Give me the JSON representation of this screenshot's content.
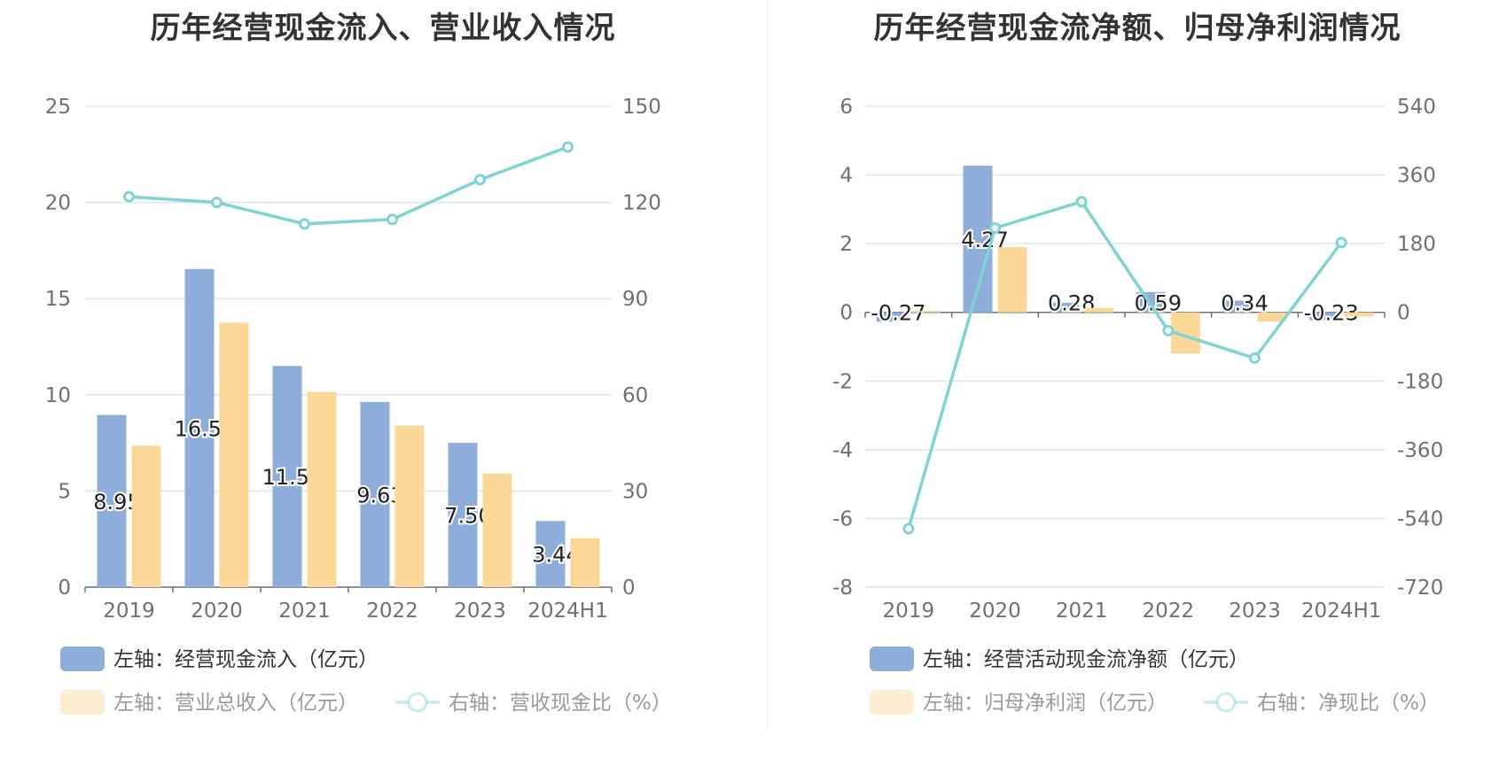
{
  "colors": {
    "bar1": "#8eaddb",
    "bar2": "#fcd898",
    "line": "#7fd3d5",
    "grid": "#dfe4f2",
    "axis": "#6e7079"
  },
  "left": {
    "title": "历年经营现金流入、营业收入情况",
    "legend": [
      {
        "label": "左轴：经营现金流入（亿元）",
        "kind": "bar",
        "color": "#8eaddb",
        "active": true
      },
      {
        "label": "左轴：营业总收入（亿元）",
        "kind": "bar",
        "color": "#fcd898",
        "active": false
      },
      {
        "label": "右轴：营收现金比（%）",
        "kind": "line",
        "color": "#7fd3d5",
        "active": false
      }
    ]
  },
  "right": {
    "title": "历年经营现金流净额、归母净利润情况",
    "legend": [
      {
        "label": "左轴：经营活动现金流净额（亿元）",
        "kind": "bar",
        "color": "#8eaddb",
        "active": true
      },
      {
        "label": "左轴：归母净利润（亿元）",
        "kind": "bar",
        "color": "#fcd898",
        "active": false
      },
      {
        "label": "右轴：净现比（%）",
        "kind": "line",
        "color": "#7fd3d5",
        "active": false
      }
    ]
  },
  "chart_data": [
    {
      "type": "bar",
      "title": "历年经营现金流入、营业收入情况",
      "categories": [
        "2019",
        "2020",
        "2021",
        "2022",
        "2023",
        "2024H1"
      ],
      "y_left": {
        "min": 0,
        "max": 25,
        "ticks": [
          "0",
          "5",
          "10",
          "15",
          "20",
          "25"
        ]
      },
      "y_right": {
        "min": 0,
        "max": 150,
        "ticks": [
          "0",
          "30",
          "60",
          "90",
          "120",
          "150"
        ]
      },
      "series": [
        {
          "name": "左轴：经营现金流入（亿元）",
          "type": "bar",
          "axis": "left",
          "values": [
            8.95,
            16.54,
            11.5,
            9.63,
            7.5,
            3.44
          ],
          "labels": [
            "8.95",
            "16.54",
            "11.50",
            "9.63",
            "7.50",
            "3.44"
          ]
        },
        {
          "name": "左轴：营业总收入（亿元）",
          "type": "bar",
          "axis": "left",
          "values": [
            7.35,
            13.75,
            10.15,
            8.4,
            5.9,
            2.55
          ]
        },
        {
          "name": "右轴：营收现金比（%）",
          "type": "line",
          "axis": "right",
          "values": [
            121.8,
            120.0,
            113.3,
            114.7,
            127.1,
            137.3
          ]
        }
      ],
      "grid": true
    },
    {
      "type": "bar",
      "title": "历年经营现金流净额、归母净利润情况",
      "categories": [
        "2019",
        "2020",
        "2021",
        "2022",
        "2023",
        "2024H1"
      ],
      "y_left": {
        "min": -8,
        "max": 6,
        "ticks": [
          "-8",
          "-6",
          "-4",
          "-2",
          "0",
          "2",
          "4",
          "6"
        ]
      },
      "y_right": {
        "min": -720,
        "max": 540,
        "ticks": [
          "-720",
          "-540",
          "-360",
          "-180",
          "0",
          "180",
          "360",
          "540"
        ]
      },
      "series": [
        {
          "name": "左轴：经营活动现金流净额（亿元）",
          "type": "bar",
          "axis": "left",
          "values": [
            -0.27,
            4.27,
            0.28,
            0.59,
            0.34,
            -0.23
          ],
          "labels": [
            "-0.27",
            "4.27",
            "0.28",
            "0.59",
            "0.34",
            "-0.23"
          ]
        },
        {
          "name": "左轴：归母净利润（亿元）",
          "type": "bar",
          "axis": "left",
          "values": [
            0.04,
            1.9,
            0.13,
            -1.2,
            -0.27,
            -0.12
          ]
        },
        {
          "name": "右轴：净现比（%）",
          "type": "line",
          "axis": "right",
          "values": [
            -567,
            221,
            290,
            -48,
            -120,
            183
          ]
        }
      ],
      "grid": true
    }
  ]
}
